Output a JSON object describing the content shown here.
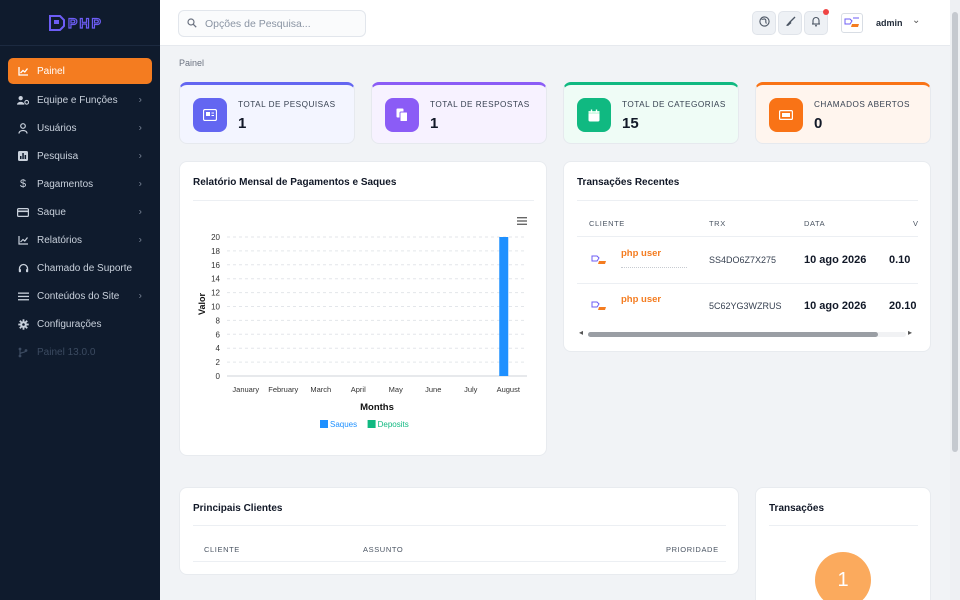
{
  "brand": {
    "logo_text": "PHP"
  },
  "sidebar": {
    "items": [
      {
        "label": "Painel",
        "icon": "chart-line-icon",
        "active": true
      },
      {
        "label": "Equipe e Funções",
        "icon": "users-cog-icon",
        "has_submenu": true
      },
      {
        "label": "Usuários",
        "icon": "user-icon",
        "has_submenu": true
      },
      {
        "label": "Pesquisa",
        "icon": "poll-icon",
        "has_submenu": true
      },
      {
        "label": "Pagamentos",
        "icon": "dollar-icon",
        "has_submenu": true
      },
      {
        "label": "Saque",
        "icon": "card-icon",
        "has_submenu": true
      },
      {
        "label": "Relatórios",
        "icon": "chart-line-icon",
        "has_submenu": true
      },
      {
        "label": "Chamado de Suporte",
        "icon": "headset-icon"
      },
      {
        "label": "Conteúdos do Site",
        "icon": "list-icon",
        "has_submenu": true
      },
      {
        "label": "Configurações",
        "icon": "gear-icon"
      },
      {
        "label": "Painel 13.0.0",
        "icon": "branch-icon"
      }
    ]
  },
  "topbar": {
    "search_placeholder": "Opções de Pesquisa...",
    "user_name": "admin"
  },
  "breadcrumb": "Painel",
  "stats": [
    {
      "label": "TOTAL DE PESQUISAS",
      "value": "1",
      "color": "#6366f1"
    },
    {
      "label": "TOTAL DE RESPOSTAS",
      "value": "1",
      "color": "#8b5cf6"
    },
    {
      "label": "TOTAL DE CATEGORIAS",
      "value": "15",
      "color": "#10b981"
    },
    {
      "label": "CHAMADOS ABERTOS",
      "value": "0",
      "color": "#f97316"
    }
  ],
  "payments_report": {
    "title": "Relatório Mensal de Pagamentos e Saques"
  },
  "chart_data": {
    "type": "bar",
    "categories": [
      "January",
      "February",
      "March",
      "April",
      "May",
      "June",
      "July",
      "August"
    ],
    "series": [
      {
        "name": "Saques",
        "values": [
          0,
          0,
          0,
          0,
          0,
          0,
          0,
          20
        ],
        "color": "#1e90ff"
      },
      {
        "name": "Deposits",
        "values": [
          0,
          0,
          0,
          0,
          0,
          0,
          0,
          0
        ],
        "color": "#10b981"
      }
    ],
    "xlabel": "Months",
    "ylabel": "Valor",
    "ylim": [
      0,
      20
    ],
    "yticks": [
      0,
      2,
      4,
      6,
      8,
      10,
      12,
      14,
      16,
      18,
      20
    ],
    "grid": true,
    "legend_position": "bottom"
  },
  "transactions": {
    "title": "Transações Recentes",
    "columns": [
      "CLIENTE",
      "TRX",
      "DATA",
      "V"
    ],
    "rows": [
      {
        "client": "php user",
        "trx": "SS4DO6Z7X275",
        "date": "10 ago 2026",
        "amount": "0.10"
      },
      {
        "client": "php user",
        "trx": "5C62YG3WZRUS",
        "date": "10 ago 2026",
        "amount": "20.10"
      }
    ]
  },
  "top_clients": {
    "title": "Principais Clientes",
    "columns": [
      "CLIENTE",
      "ASSUNTO",
      "PRIORIDADE"
    ]
  },
  "transactions_summary": {
    "title": "Transações",
    "count": "1"
  }
}
